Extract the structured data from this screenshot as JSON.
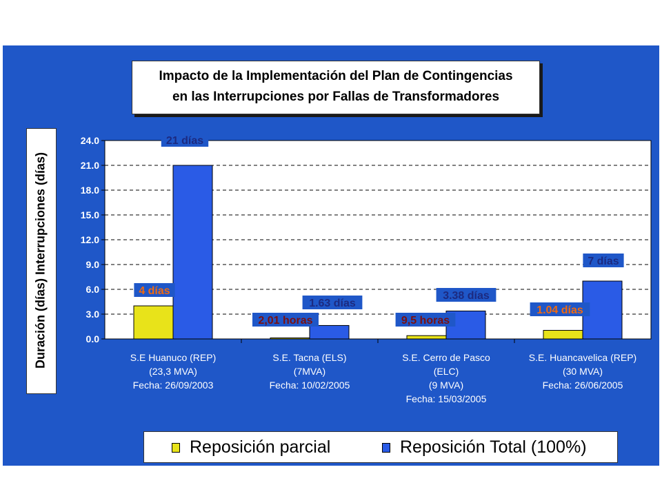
{
  "colors": {
    "panel": "#1f57c8",
    "plot_background": "#ffffff",
    "series_partial": "#e8e31a",
    "series_total": "#2a5be6",
    "label_orange": "#f06a10",
    "label_darkred": "#7a1010",
    "label_navy": "#1c2a80"
  },
  "chart_data": {
    "type": "bar",
    "title": "Impacto de la Implementación del Plan de Contingencias en las Interrupciones por Fallas de Transformadores",
    "title_lines": [
      "Impacto de la Implementación del Plan de Contingencias",
      "en las Interrupciones por Fallas de Transformadores"
    ],
    "xlabel": "",
    "ylabel": "Duración (días) Interrupciones (días)",
    "ylim": [
      0,
      24
    ],
    "yticks": [
      "24.0",
      "21.0",
      "18.0",
      "15.0",
      "12.0",
      "9.0",
      "6.0",
      "3.0",
      "0.0"
    ],
    "ytick_values": [
      24,
      21,
      18,
      15,
      12,
      9,
      6,
      3,
      0
    ],
    "grid": "horizontal dashed",
    "legend_position": "bottom",
    "categories": [
      [
        "S.E Huanuco (REP)",
        "(23,3 MVA)",
        "Fecha: 26/09/2003"
      ],
      [
        "S.E. Tacna (ELS)",
        "(7MVA)",
        "Fecha: 10/02/2005"
      ],
      [
        "S.E. Cerro de Pasco",
        "(ELC)",
        "(9 MVA)",
        "Fecha: 15/03/2005"
      ],
      [
        "S.E. Huancavelica (REP)",
        "(30 MVA)",
        "Fecha: 26/06/2005"
      ]
    ],
    "series": [
      {
        "name": "Reposición parcial",
        "values": [
          4,
          0.08,
          0.4,
          1.04
        ],
        "data_labels": [
          "4 días",
          "2,01 horas",
          "9,5 horas",
          "1.04 días"
        ],
        "label_colors": [
          "#f06a10",
          "#7a1010",
          "#7a1010",
          "#f06a10"
        ]
      },
      {
        "name": "Reposición Total (100%)",
        "values": [
          21,
          1.63,
          3.38,
          7
        ],
        "data_labels": [
          "21 días",
          "1.63 días",
          "3.38 días",
          "7 días"
        ],
        "label_colors": [
          "#1c2a80",
          "#1c2a80",
          "#1c2a80",
          "#1c2a80"
        ]
      }
    ]
  }
}
